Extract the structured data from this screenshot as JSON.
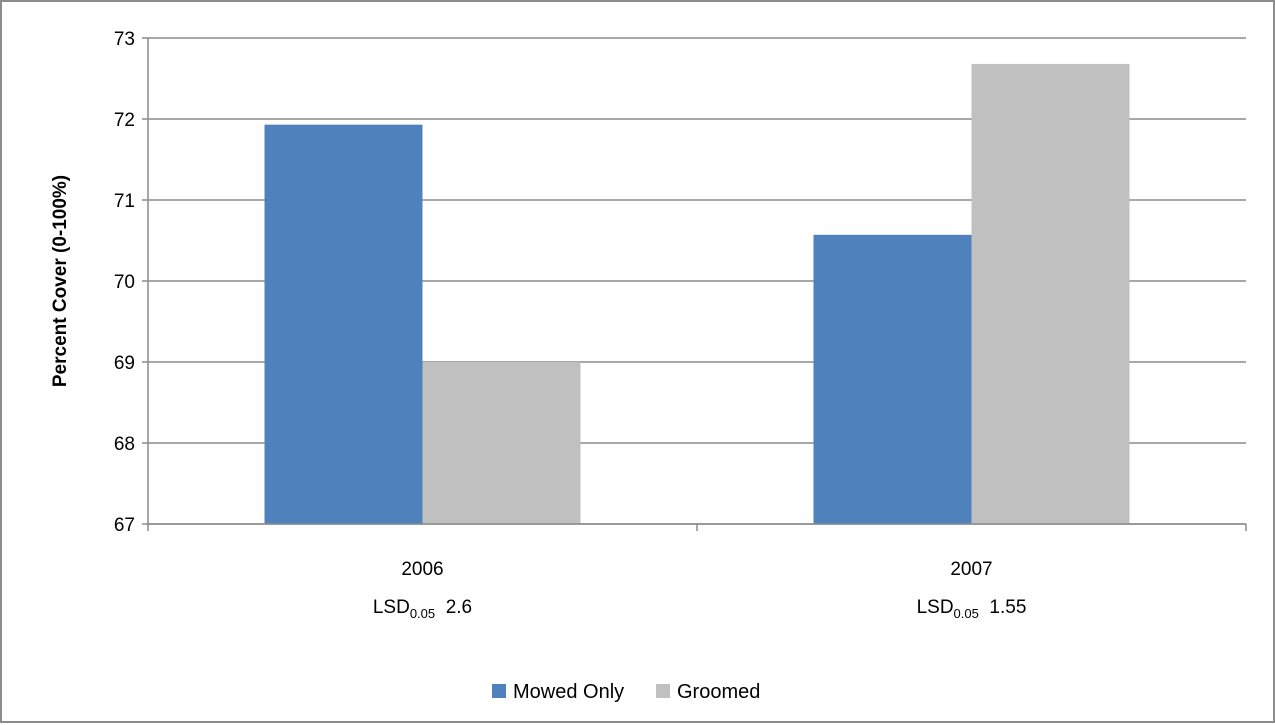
{
  "chart_data": {
    "type": "bar",
    "title": "",
    "xlabel": "",
    "ylabel": "Percent Cover (0-100%)",
    "ylim": [
      67,
      73
    ],
    "yticks": [
      67,
      68,
      69,
      70,
      71,
      72,
      73
    ],
    "grid": true,
    "legend_position": "bottom",
    "categories": [
      "2006",
      "2007"
    ],
    "category_notes": [
      {
        "main": "LSD",
        "sub": "0.05",
        "value": "2.6"
      },
      {
        "main": "LSD",
        "sub": "0.05",
        "value": "1.55"
      }
    ],
    "series": [
      {
        "name": "Mowed Only",
        "color": "#4f81bd",
        "values": [
          71.93,
          70.57
        ]
      },
      {
        "name": "Groomed",
        "color": "#c0c0c0",
        "values": [
          69.0,
          72.68
        ]
      }
    ]
  }
}
